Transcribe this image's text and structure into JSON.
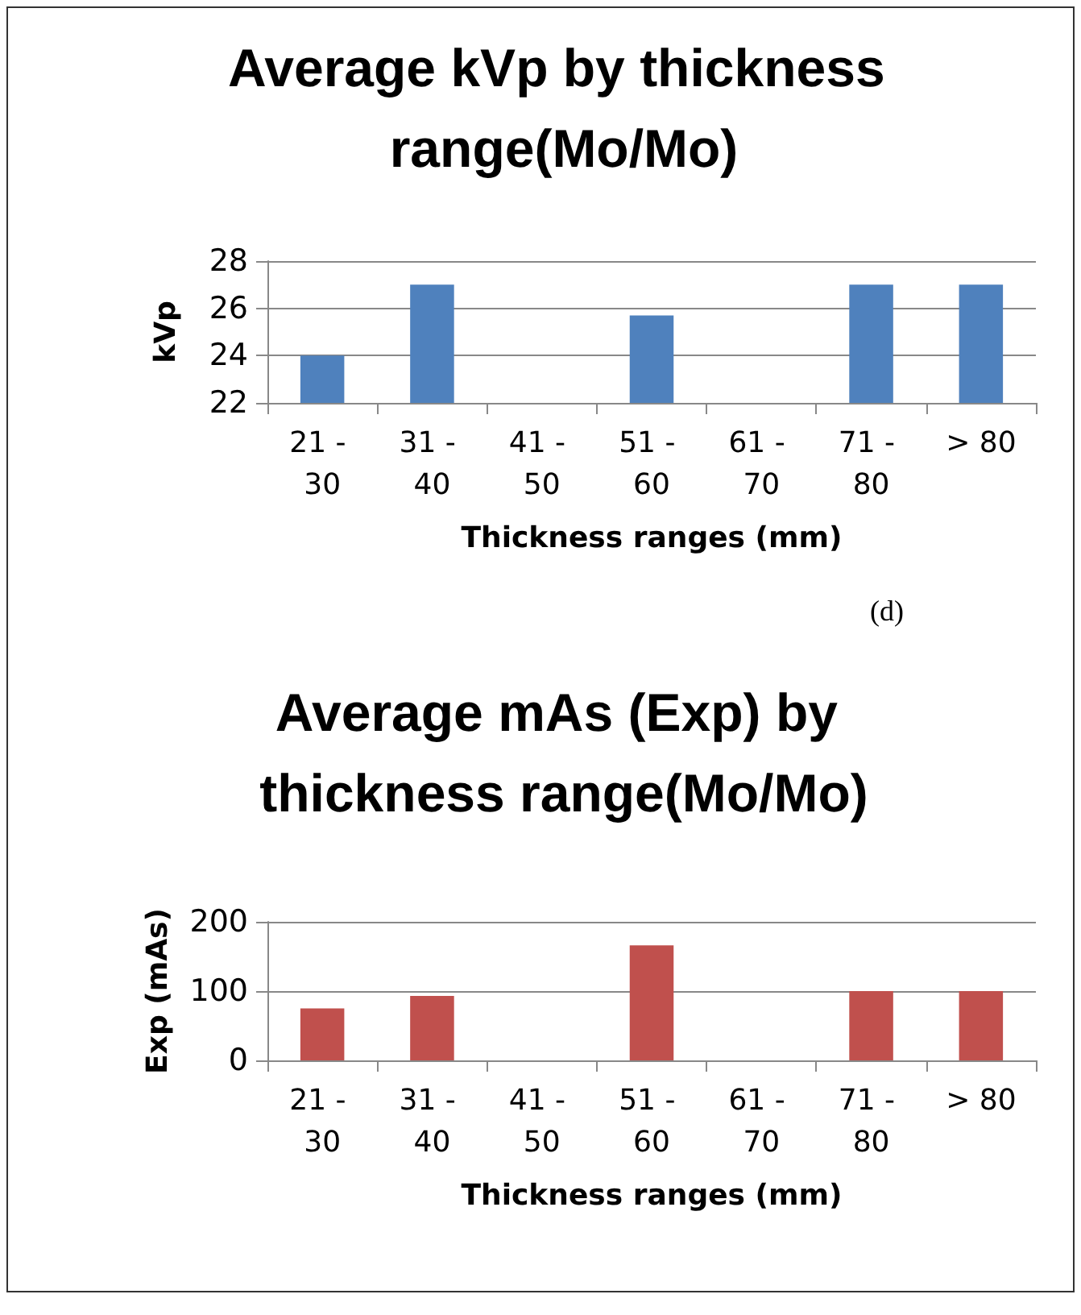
{
  "chart_data": [
    {
      "type": "bar",
      "title": "Average kVp by thickness range(Mo/Mo)",
      "xlabel": "Thickness ranges (mm)",
      "ylabel": "kVp",
      "categories": [
        "21 - 30",
        "31 - 40",
        "41 - 50",
        "51 - 60",
        "61 - 70",
        "71 - 80",
        "> 80"
      ],
      "values": [
        24.0,
        27.0,
        null,
        25.7,
        null,
        27.0,
        27.0
      ],
      "color": "#4f81bd",
      "ylim": [
        22,
        28
      ],
      "yticks": [
        22,
        24,
        26,
        28
      ],
      "grid": "y",
      "annotations": [
        "(d)"
      ]
    },
    {
      "type": "bar",
      "title": "Average mAs (Exp) by thickness range(Mo/Mo)",
      "xlabel": "Thickness ranges (mm)",
      "ylabel": "Exp (mAs)",
      "categories": [
        "21 - 30",
        "31 - 40",
        "41 - 50",
        "51 - 60",
        "61 - 70",
        "71 - 80",
        "> 80"
      ],
      "values": [
        75,
        93,
        null,
        166,
        null,
        100,
        100
      ],
      "color": "#c0504d",
      "ylim": [
        0,
        200
      ],
      "yticks": [
        0,
        100,
        200
      ],
      "grid": "y"
    }
  ]
}
